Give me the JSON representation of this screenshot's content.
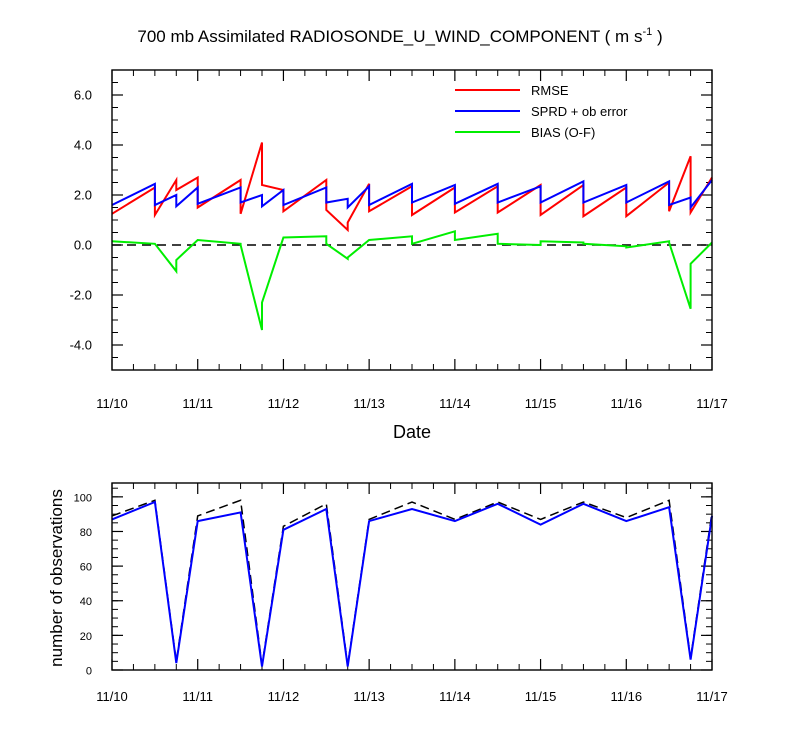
{
  "title": {
    "main": "700 mb Assimilated RADIOSONDE_U_WIND_COMPONENT ( m s",
    "sup": "-1",
    "close": " )"
  },
  "colors": {
    "rmse": "#ff0000",
    "sprd": "#0000ff",
    "bias": "#00ee00",
    "obs_used": "#0000ff",
    "obs_possible": "#000000",
    "zero_line": "#000000"
  },
  "chart_data": [
    {
      "type": "line",
      "xlabel": "Date",
      "ylabel": "",
      "xlim": [
        0,
        7
      ],
      "ylim": [
        -5,
        7
      ],
      "x_ticks": [
        0,
        1,
        2,
        3,
        4,
        5,
        6,
        7
      ],
      "x_tick_labels": [
        "11/10",
        "11/11",
        "11/12",
        "11/13",
        "11/14",
        "11/15",
        "11/16",
        "11/17"
      ],
      "y_ticks": [
        -4,
        -2,
        0,
        2,
        4,
        6
      ],
      "y_tick_labels": [
        "-4.0",
        "-2.0",
        "0.0",
        "2.0",
        "4.0",
        "6.0"
      ],
      "zero_line": true,
      "legend": "top-right",
      "series": [
        {
          "name": "RMSE",
          "color_key": "rmse",
          "x": [
            0,
            0.5,
            0.5,
            0.75,
            0.75,
            1,
            1,
            1.5,
            1.5,
            1.75,
            1.75,
            2,
            2,
            2.5,
            2.5,
            2.75,
            2.75,
            3,
            3,
            3.5,
            3.5,
            4,
            4,
            4.5,
            4.5,
            5,
            5,
            5.5,
            5.5,
            6,
            6,
            6.5,
            6.5,
            6.75,
            6.75,
            7
          ],
          "values": [
            1.25,
            2.3,
            1.2,
            2.6,
            2.2,
            2.7,
            1.5,
            2.6,
            1.25,
            4.1,
            2.4,
            2.2,
            1.35,
            2.6,
            1.4,
            0.6,
            0.9,
            2.45,
            1.35,
            2.35,
            1.2,
            2.3,
            1.3,
            2.35,
            1.3,
            2.4,
            1.2,
            2.4,
            1.15,
            2.3,
            1.15,
            2.5,
            1.35,
            3.55,
            1.3,
            2.7
          ]
        },
        {
          "name": "SPRD + ob error",
          "color_key": "sprd",
          "x": [
            0,
            0.5,
            0.5,
            0.75,
            0.75,
            1,
            1,
            1.5,
            1.5,
            1.75,
            1.75,
            2,
            2,
            2.5,
            2.5,
            2.75,
            2.75,
            3,
            3,
            3.5,
            3.5,
            4,
            4,
            4.5,
            4.5,
            5,
            5,
            5.5,
            5.5,
            6,
            6,
            6.5,
            6.5,
            6.75,
            6.75,
            7
          ],
          "values": [
            1.6,
            2.45,
            1.6,
            2.0,
            1.55,
            2.3,
            1.65,
            2.3,
            1.7,
            2.0,
            1.55,
            2.2,
            1.6,
            2.3,
            1.7,
            1.85,
            1.5,
            2.35,
            1.6,
            2.45,
            1.7,
            2.4,
            1.65,
            2.45,
            1.7,
            2.35,
            1.7,
            2.55,
            1.7,
            2.4,
            1.7,
            2.55,
            1.6,
            1.9,
            1.5,
            2.6
          ]
        },
        {
          "name": "BIAS (O-F)",
          "color_key": "bias",
          "x": [
            0,
            0.5,
            0.5,
            0.75,
            0.75,
            1,
            1,
            1.5,
            1.5,
            1.75,
            1.75,
            2,
            2,
            2.5,
            2.5,
            2.75,
            2.75,
            3,
            3,
            3.5,
            3.5,
            4,
            4,
            4.5,
            4.5,
            5,
            5,
            5.5,
            5.5,
            6,
            6,
            6.5,
            6.5,
            6.75,
            6.75,
            7
          ],
          "values": [
            0.15,
            0.05,
            0.05,
            -1.05,
            -0.6,
            0.2,
            0.2,
            0.05,
            0.0,
            -3.4,
            -2.3,
            0.3,
            0.3,
            0.35,
            0.05,
            -0.55,
            -0.5,
            0.2,
            0.2,
            0.35,
            0.05,
            0.55,
            0.2,
            0.45,
            0.05,
            0.0,
            0.15,
            0.1,
            0.05,
            -0.05,
            -0.1,
            0.15,
            0.1,
            -2.55,
            -0.75,
            0.1
          ]
        }
      ]
    },
    {
      "type": "line",
      "xlabel": "",
      "ylabel": "number of observations",
      "xlim": [
        0,
        7
      ],
      "ylim": [
        0,
        108
      ],
      "x_ticks": [
        0,
        1,
        2,
        3,
        4,
        5,
        6,
        7
      ],
      "x_tick_labels": [
        "11/10",
        "11/11",
        "11/12",
        "11/13",
        "11/14",
        "11/15",
        "11/16",
        "11/17"
      ],
      "y_ticks": [
        0,
        20,
        40,
        60,
        80,
        100
      ],
      "y_tick_labels": [
        "0",
        "20",
        "40",
        "60",
        "80",
        "100"
      ],
      "series": [
        {
          "color_key": "obs_possible",
          "dashed": true,
          "x": [
            0,
            0.5,
            0.75,
            1,
            1.5,
            1.75,
            2,
            2.5,
            2.75,
            3,
            3.5,
            4,
            4.5,
            5,
            5.5,
            6,
            6.5,
            6.75,
            7
          ],
          "values": [
            89,
            98,
            5,
            89,
            98,
            3,
            83,
            96,
            3,
            87,
            97,
            87,
            97,
            87,
            97,
            88,
            98,
            7,
            91
          ]
        },
        {
          "color_key": "obs_used",
          "dashed": false,
          "x": [
            0,
            0.5,
            0.75,
            1,
            1.5,
            1.75,
            2,
            2.5,
            2.75,
            3,
            3.5,
            4,
            4.5,
            5,
            5.5,
            6,
            6.5,
            6.75,
            7
          ],
          "values": [
            87,
            97,
            4,
            86,
            91,
            2,
            81,
            93,
            2,
            86,
            93,
            86,
            96,
            84,
            96,
            86,
            94,
            6,
            89
          ]
        }
      ]
    }
  ]
}
